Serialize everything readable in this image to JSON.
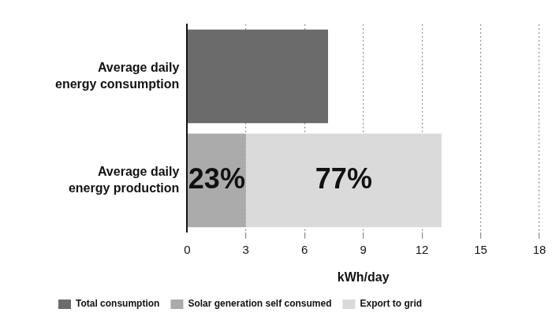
{
  "chart_data": {
    "type": "bar",
    "orientation": "horizontal",
    "stacked": true,
    "categories": [
      "Average daily energy consumption",
      "Average daily energy production"
    ],
    "series": [
      {
        "name": "Total consumption",
        "color": "#6b6b6b",
        "values": [
          7.2,
          null
        ]
      },
      {
        "name": "Solar generation self consumed",
        "color": "#ababab",
        "values": [
          null,
          3
        ]
      },
      {
        "name": "Export to grid",
        "color": "#dadada",
        "values": [
          null,
          10
        ]
      }
    ],
    "annotations": [
      {
        "text": "23%",
        "series": "Solar generation self consumed",
        "category": "Average daily energy production"
      },
      {
        "text": "77%",
        "series": "Export to grid",
        "category": "Average daily energy production"
      }
    ],
    "x_label": "kWh/day",
    "xlim": [
      0,
      18
    ],
    "xticks": [
      0,
      3,
      6,
      9,
      12,
      15,
      18
    ],
    "grid": true,
    "legend": "bottom-left"
  }
}
